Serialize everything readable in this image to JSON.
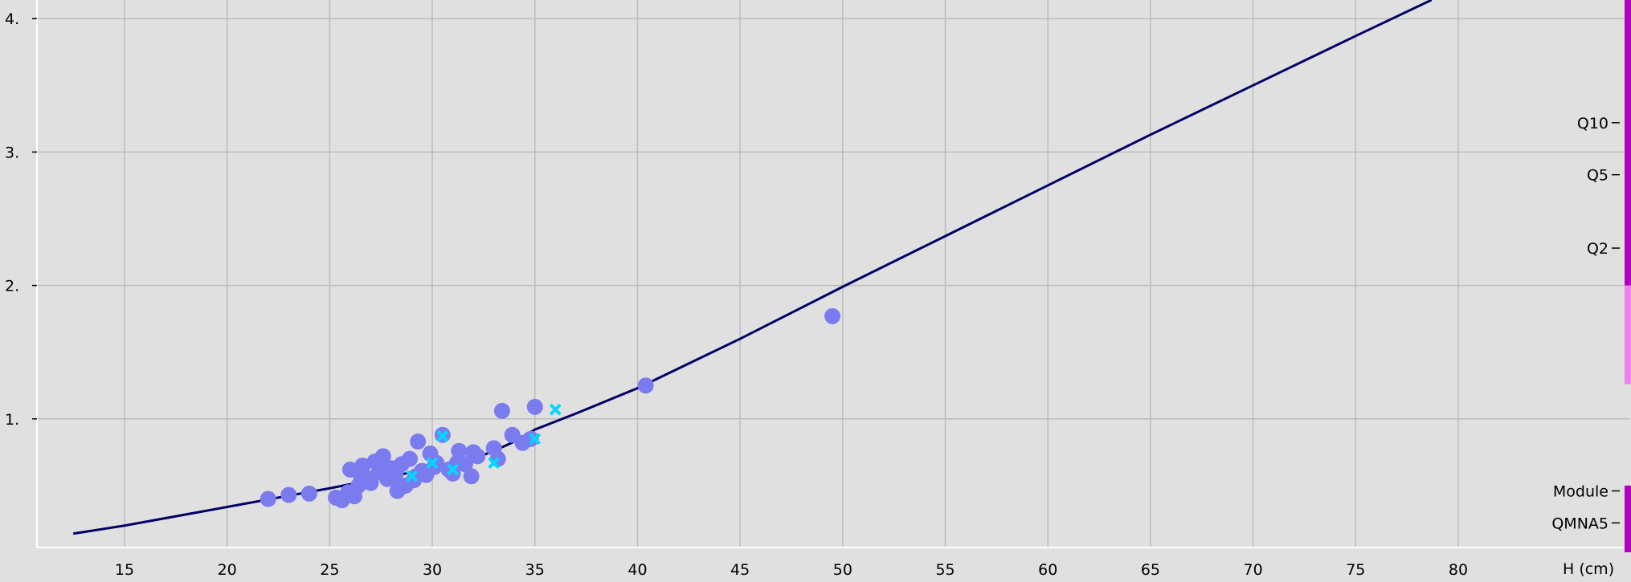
{
  "chart_data": {
    "type": "scatter",
    "title": "",
    "xlabel": "H (cm)",
    "ylabel": "",
    "xlim": [
      8.5,
      80
    ],
    "ylim": [
      0,
      4.1
    ],
    "grid": true,
    "x_ticks": [
      15,
      20,
      25,
      30,
      35,
      40,
      45,
      50,
      55,
      60,
      65,
      70,
      75,
      80
    ],
    "x_tick_labels": [
      "15",
      "20",
      "25",
      "30",
      "35",
      "40",
      "45",
      "50",
      "55",
      "60",
      "65",
      "70",
      "75",
      "80"
    ],
    "y_ticks": [
      1,
      2,
      3,
      4
    ],
    "y_tick_labels": [
      "1.",
      "2.",
      "3.",
      "4."
    ],
    "series": [
      {
        "kind": "line",
        "color": "#000066",
        "x": [
          12.5,
          15,
          20,
          25,
          28,
          30,
          31,
          32,
          33,
          34,
          35,
          37,
          40,
          45,
          50,
          55,
          60,
          65,
          70,
          75,
          78.7
        ],
        "values": [
          0.14,
          0.2,
          0.34,
          0.48,
          0.57,
          0.63,
          0.66,
          0.7,
          0.76,
          0.83,
          0.92,
          1.04,
          1.23,
          1.6,
          1.99,
          2.37,
          2.75,
          3.13,
          3.5,
          3.87,
          4.14
        ]
      },
      {
        "kind": "scatter",
        "color": "#7b7bf0",
        "x": [
          22,
          23,
          24,
          25.3,
          25.6,
          25.9,
          26,
          26.2,
          26.4,
          26.6,
          26.8,
          27,
          27.2,
          27.4,
          27.6,
          27.8,
          28,
          28.2,
          28.3,
          28.5,
          28.7,
          28.9,
          29.1,
          29.3,
          29.5,
          29.7,
          29.9,
          30.2,
          30.5,
          30.8,
          31,
          31.3,
          31.6,
          31.9,
          32.2,
          33,
          33.4,
          33.9,
          34.4,
          35,
          40.4,
          49.5,
          26.5,
          27.7,
          28.4,
          29.2,
          30.1,
          31.2,
          32,
          33.2,
          34.8
        ],
        "values": [
          0.4,
          0.43,
          0.44,
          0.41,
          0.39,
          0.45,
          0.62,
          0.42,
          0.5,
          0.65,
          0.56,
          0.52,
          0.68,
          0.6,
          0.72,
          0.55,
          0.63,
          0.58,
          0.46,
          0.66,
          0.5,
          0.7,
          0.54,
          0.83,
          0.61,
          0.58,
          0.74,
          0.67,
          0.88,
          0.62,
          0.59,
          0.76,
          0.66,
          0.57,
          0.72,
          0.78,
          1.06,
          0.88,
          0.82,
          1.09,
          1.25,
          1.77,
          0.58,
          0.63,
          0.48,
          0.57,
          0.64,
          0.67,
          0.75,
          0.7,
          0.85
        ]
      },
      {
        "kind": "cross",
        "color": "#00d8ff",
        "x": [
          29,
          30,
          30.5,
          31,
          33,
          35,
          36
        ],
        "values": [
          0.57,
          0.67,
          0.87,
          0.62,
          0.67,
          0.85,
          1.07
        ]
      }
    ],
    "side_scale": {
      "labels": [
        "Q10",
        "Q5",
        "Q2",
        "Module",
        "QMNA5"
      ],
      "label_values": [
        3.22,
        2.83,
        2.28,
        0.46,
        0.22
      ],
      "bars": [
        {
          "from": 2.0,
          "to": 4.15,
          "color": "#b000c0"
        },
        {
          "from": 1.26,
          "to": 2.0,
          "color": "#f080f0"
        },
        {
          "from": 0.0,
          "to": 0.5,
          "color": "#b000c0"
        }
      ]
    }
  }
}
